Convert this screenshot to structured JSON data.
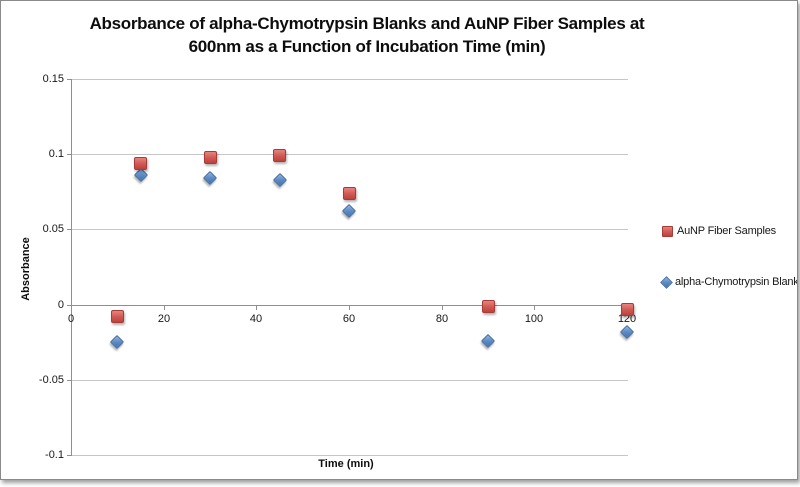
{
  "window": {
    "background": "#ffffff",
    "border_color": "#8a8a8a"
  },
  "chart_data": {
    "type": "scatter",
    "title": "Absorbance of alpha-Chymotrypsin Blanks and AuNP Fiber Samples at 600nm as a Function of Incubation Time (min)",
    "title_lines": [
      "Absorbance of alpha-Chymotrypsin Blanks and AuNP Fiber Samples at",
      "600nm as a Function of Incubation Time (min)"
    ],
    "xlabel": "Time (min)",
    "ylabel": "Absorbance",
    "xlim": [
      0,
      120
    ],
    "ylim": [
      -0.1,
      0.15
    ],
    "x_ticks": [
      0,
      20,
      40,
      60,
      80,
      100,
      120
    ],
    "x_tick_labels": [
      "0",
      "20",
      "40",
      "60",
      "80",
      "100",
      "120"
    ],
    "y_ticks": [
      0.15,
      0.1,
      0.05,
      0,
      -0.05,
      -0.1
    ],
    "y_tick_labels": [
      "0.15",
      "0.1",
      "0.05",
      "0",
      "-0.05",
      "-0.1"
    ],
    "grid": true,
    "legend_position": "right",
    "series": [
      {
        "name": "alpha-Chymotrypsin Blank",
        "marker": "diamond",
        "color": "#4F81BD",
        "points": [
          [
            10,
            -0.025
          ],
          [
            15,
            0.086
          ],
          [
            30,
            0.084
          ],
          [
            45,
            0.083
          ],
          [
            60,
            0.062
          ],
          [
            90,
            -0.024
          ],
          [
            120,
            -0.018
          ]
        ]
      },
      {
        "name": "AuNP Fiber Samples",
        "marker": "square",
        "color": "#C0504D",
        "points": [
          [
            10,
            -0.008
          ],
          [
            15,
            0.094
          ],
          [
            30,
            0.098
          ],
          [
            45,
            0.099
          ],
          [
            60,
            0.074
          ],
          [
            90,
            -0.001
          ],
          [
            120,
            -0.003
          ]
        ]
      }
    ]
  }
}
